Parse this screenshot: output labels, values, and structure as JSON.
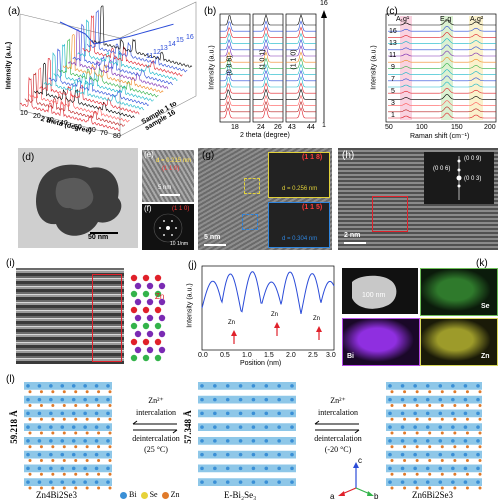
{
  "panels": {
    "a": {
      "label": "(a)",
      "ylabel": "Intensity (a.u.)",
      "xlabel": "2 theta (degree)",
      "zlabel": "Sample 1 to sample 16",
      "xticks": [
        "10",
        "20",
        "30",
        "40",
        "50",
        "60",
        "70",
        "80"
      ],
      "sample_labels": [
        "1",
        "2",
        "3",
        "4",
        "5",
        "6",
        "7",
        "8",
        "9",
        "10",
        "11",
        "12",
        "13",
        "14",
        "15",
        "16"
      ]
    },
    "b": {
      "label": "(b)",
      "ylabel": "Intensity (a.u.)",
      "xlabel": "2 theta (degree)",
      "peaks": [
        "(0 0 6)",
        "(1 0 1)",
        "(1 1 0)"
      ],
      "xticks": [
        "18",
        "24",
        "26",
        "43",
        "44"
      ],
      "arrow_top": "16",
      "arrow_bottom": "1"
    },
    "c": {
      "label": "(c)",
      "xlabel": "Raman shift (cm⁻¹)",
      "ylabel": "Intensity (a.u.)",
      "modes": [
        "A₁g¹",
        "E₂g",
        "A₁g²"
      ],
      "xticks": [
        "50",
        "100",
        "150",
        "200"
      ],
      "row_labels": [
        "16",
        "13",
        "11",
        "9",
        "7",
        "5",
        "3",
        "1"
      ]
    },
    "d": {
      "label": "(d)",
      "scale": "50 nm"
    },
    "e": {
      "label": "(e)",
      "d1": "d = 0.215 nm",
      "hkl1": "(1 1 0)",
      "scale": "5 nm"
    },
    "f": {
      "label": "(f)",
      "hkl": "(1 1 0)",
      "scale": "10 1/nm"
    },
    "g": {
      "label": "(g)",
      "hkl1": "(1 1 8)",
      "d1": "d = 0.256 nm",
      "hkl2": "(1 1 5)",
      "d2": "d = 0.304 nm",
      "scale": "5 nm"
    },
    "h": {
      "label": "(h)",
      "spots": [
        "(0 0 9)",
        "(0 0 6)",
        "(0 0 3)"
      ],
      "scale": "2 nm"
    },
    "i": {
      "label": "(i)",
      "atom": "Zn"
    },
    "j": {
      "label": "(j)",
      "ylabel": "Intensity (a.u.)",
      "xlabel": "Position (nm)",
      "xticks": [
        "0.0",
        "0.5",
        "1.0",
        "1.5",
        "2.0",
        "2.5",
        "3.0"
      ],
      "marks": [
        "Zn",
        "Zn",
        "Zn"
      ]
    },
    "k": {
      "label": "(k)",
      "scale": "100 nm",
      "maps": [
        "Se",
        "Bi",
        "Zn"
      ]
    },
    "l": {
      "label": "(l)",
      "left_name": "ZnₖBi₂Se₃",
      "left_name_render": "Zn4Bi2Se3",
      "mid_name": "E-Bi₂Se₃",
      "right_name_render": "Zn6Bi2Se3",
      "left_spacing": "59.218 Å",
      "mid_spacing": "57.348 Å",
      "arrow1_top": "Zn²⁺",
      "arrow1_mid": "intercalation",
      "arrow1_bot": "deintercalation",
      "arrow1_temp": "(25 °C)",
      "arrow2_top": "Zn²⁺",
      "arrow2_mid": "intercalation",
      "arrow2_bot": "deintercalation",
      "arrow2_temp": "(-20 °C)",
      "legend": [
        {
          "name": "Bi",
          "color": "#3a8fd6"
        },
        {
          "name": "Se",
          "color": "#e6d23a"
        },
        {
          "name": "Zn",
          "color": "#e07a2a"
        }
      ],
      "axes": [
        "a",
        "b",
        "c"
      ]
    }
  },
  "colors": {
    "red": "#e0202a",
    "blue": "#2a4bd8",
    "cyan": "#17b7c9",
    "green": "#33b34a",
    "orange": "#f08a24",
    "purple": "#7a2ab3"
  }
}
